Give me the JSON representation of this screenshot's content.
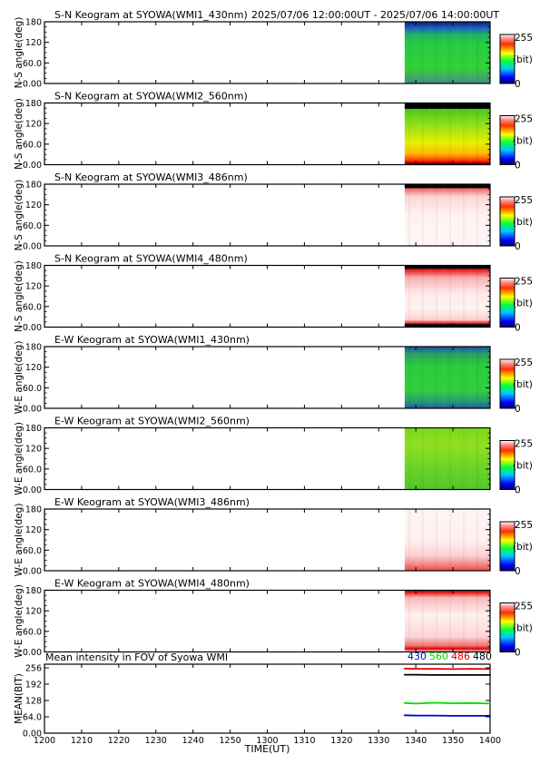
{
  "header": {
    "time_range": "2025/07/06 12:00:00UT - 2025/07/06 14:00:00UT"
  },
  "x_axis": {
    "label": "TIME(UT)",
    "ticks": [
      "1200",
      "1210",
      "1220",
      "1230",
      "1240",
      "1250",
      "1300",
      "1310",
      "1320",
      "1330",
      "1340",
      "1350",
      "1400"
    ],
    "range_minutes": [
      0,
      120
    ]
  },
  "colorbar": {
    "max": "255",
    "unit": "(bit)",
    "min": "0"
  },
  "chart_data": [
    {
      "type": "heatmap",
      "title": "S-N Keogram at SYOWA(WMI1_430nm)",
      "ylabel": "N-S angle(deg)",
      "yticks": [
        "0.00",
        "60.0",
        "120",
        "180"
      ],
      "ylim": [
        0,
        180
      ],
      "data_start": "1337",
      "scheme": "g430_ns"
    },
    {
      "type": "heatmap",
      "title": "S-N Keogram at SYOWA(WMI2_560nm)",
      "ylabel": "N-S angle(deg)",
      "yticks": [
        "0.00",
        "60.0",
        "120",
        "180"
      ],
      "ylim": [
        0,
        180
      ],
      "data_start": "1337",
      "scheme": "g560_ns"
    },
    {
      "type": "heatmap",
      "title": "S-N Keogram at SYOWA(WMI3_486nm)",
      "ylabel": "N-S angle(deg)",
      "yticks": [
        "0.00",
        "60.0",
        "120",
        "180"
      ],
      "ylim": [
        0,
        180
      ],
      "data_start": "1337",
      "scheme": "w486_ns"
    },
    {
      "type": "heatmap",
      "title": "S-N Keogram at SYOWA(WMI4_480nm)",
      "ylabel": "N-S angle(deg)",
      "yticks": [
        "0.00",
        "60.0",
        "120",
        "180"
      ],
      "ylim": [
        0,
        180
      ],
      "data_start": "1337",
      "scheme": "w480_ns"
    },
    {
      "type": "heatmap",
      "title": "E-W Keogram at SYOWA(WMI1_430nm)",
      "ylabel": "W-E angle(deg)",
      "yticks": [
        "0.00",
        "60.0",
        "120",
        "180"
      ],
      "ylim": [
        0,
        180
      ],
      "data_start": "1337",
      "scheme": "g430_ew"
    },
    {
      "type": "heatmap",
      "title": "E-W Keogram at SYOWA(WMI2_560nm)",
      "ylabel": "W-E angle(deg)",
      "yticks": [
        "0.00",
        "60.0",
        "120",
        "180"
      ],
      "ylim": [
        0,
        180
      ],
      "data_start": "1337",
      "scheme": "g560_ew"
    },
    {
      "type": "heatmap",
      "title": "E-W Keogram at SYOWA(WMI3_486nm)",
      "ylabel": "W-E angle(deg)",
      "yticks": [
        "0.00",
        "60.0",
        "120",
        "180"
      ],
      "ylim": [
        0,
        180
      ],
      "data_start": "1337",
      "scheme": "w486_ew"
    },
    {
      "type": "heatmap",
      "title": "E-W Keogram at SYOWA(WMI4_480nm)",
      "ylabel": "W-E angle(deg)",
      "yticks": [
        "0.00",
        "60.0",
        "120",
        "180"
      ],
      "ylim": [
        0,
        180
      ],
      "data_start": "1337",
      "scheme": "w480_ew"
    },
    {
      "type": "line",
      "title": "Mean intensity in FOV of Syowa WMI",
      "ylabel": "MEAN(BIT)",
      "yticks": [
        "0.00",
        "64.0",
        "128",
        "192",
        "256"
      ],
      "ylim": [
        0,
        256
      ],
      "legend_position": "top-right",
      "series": [
        {
          "name": "430",
          "color": "#0000cc",
          "x": [
            1337,
            1340,
            1345,
            1350,
            1355,
            1400
          ],
          "values": [
            70,
            69,
            69,
            68,
            68,
            68
          ]
        },
        {
          "name": "560",
          "color": "#00dd00",
          "x": [
            1337,
            1340,
            1345,
            1350,
            1355,
            1400
          ],
          "values": [
            118,
            116,
            119,
            117,
            118,
            116
          ]
        },
        {
          "name": "486",
          "color": "#dd0000",
          "x": [
            1337,
            1340,
            1345,
            1350,
            1355,
            1400
          ],
          "values": [
            253,
            252,
            252,
            251,
            252,
            251
          ]
        },
        {
          "name": "480",
          "color": "#000000",
          "x": [
            1337,
            1340,
            1345,
            1350,
            1355,
            1400
          ],
          "values": [
            229,
            229,
            228,
            228,
            228,
            228
          ]
        }
      ]
    }
  ]
}
